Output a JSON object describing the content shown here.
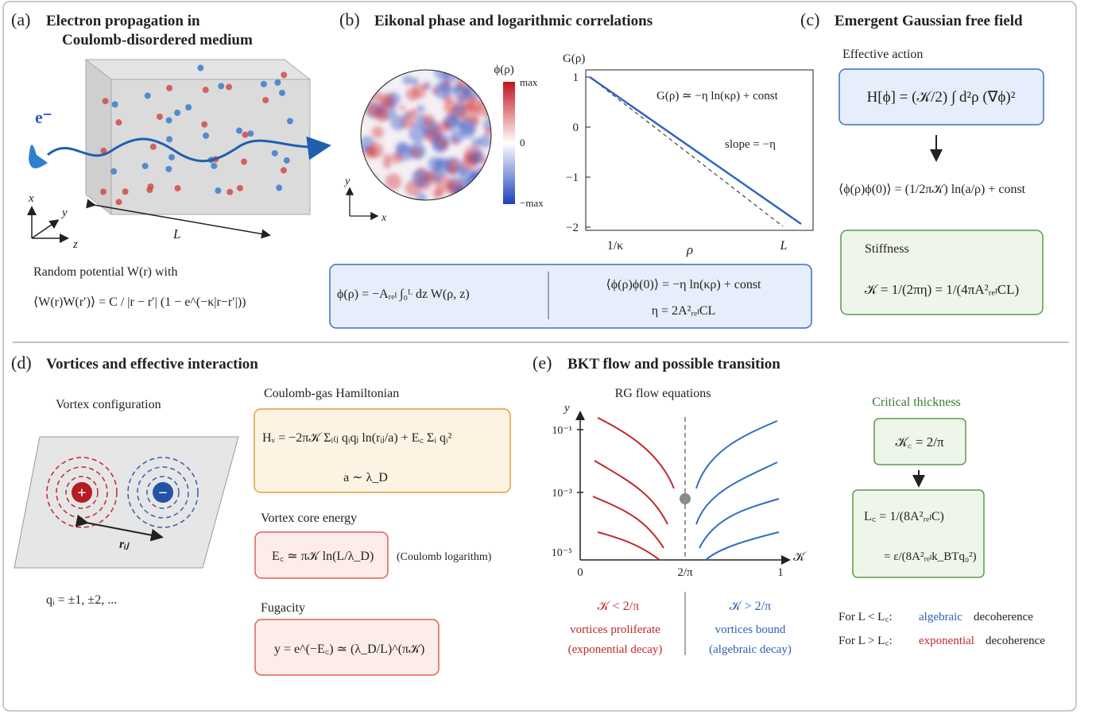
{
  "a": {
    "label": "(a)",
    "title": [
      "Electron propagation in",
      "Coulomb-disordered medium"
    ],
    "electron": "e⁻",
    "axes": [
      "x",
      "y",
      "z"
    ],
    "length": "L",
    "caption": "Random potential W(r) with",
    "equation": "⟨W(r)W(r′)⟩ = C / |r − r′| (1 − e^(−κ|r−r′|))"
  },
  "b": {
    "label": "(b)",
    "title": "Eikonal phase and logarithmic correlations",
    "colorbar_title": "ϕ(ρ)",
    "colorbar_ticks": [
      "max",
      "0",
      "−max"
    ],
    "map_axes": [
      "y",
      "x"
    ],
    "plot_ylabel": "G(ρ)",
    "plot_yticks": [
      "1",
      "0",
      "−1",
      "−2"
    ],
    "plot_xticks": [
      "1/κ",
      "ρ",
      "L"
    ],
    "fit_label": "G(ρ) ≃ −η ln(κρ) + const",
    "slope_label": "slope = −η",
    "box": [
      "ϕ(ρ) = −Aᵣₑₗ ∫₀ᴸ dz W(ρ, z)",
      "⟨ϕ(ρ)ϕ(0)⟩ = −η ln(κρ) + const",
      "η = 2A²ᵣₑₗCL"
    ]
  },
  "c": {
    "label": "(c)",
    "title": "Emergent Gaussian free field",
    "action_title": "Effective action",
    "action": "H[ϕ] = (𝒦/2) ∫ d²ρ (∇ϕ)²",
    "correlator": "⟨ϕ(ρ)ϕ(0)⟩ = (1/2π𝒦) ln(a/ρ) + const",
    "stiffness_title": "Stiffness",
    "stiffness": "𝒦 = 1/(2πη) = 1/(4πA²ᵣₑₗCL)"
  },
  "d": {
    "label": "(d)",
    "title": "Vortices and effective interaction",
    "config_title": "Vortex configuration",
    "charges": [
      "+",
      "−"
    ],
    "distance": "rᵢⱼ",
    "charge_values": "qᵢ = ±1, ±2, ...",
    "hamiltonian_title": "Coulomb-gas Hamiltonian",
    "hamiltonian": [
      "Hᵥ = −2π𝒦 Σᵢ₍ⱼ qᵢqⱼ ln(rᵢⱼ/a) + E꜀ Σᵢ qᵢ²",
      "a ∼ λ_D"
    ],
    "core_title": "Vortex core energy",
    "core": "E꜀ ≃ π𝒦 ln(L/λ_D)",
    "core_note": "(Coulomb logarithm)",
    "fugacity_title": "Fugacity",
    "fugacity": "y = e^(−E꜀) ≃ (λ_D/L)^(π𝒦)"
  },
  "e": {
    "label": "(e)",
    "title": "BKT flow and possible transition",
    "flow_title": "RG flow equations",
    "ylabel": "y",
    "yticks": [
      "10⁻¹",
      "10⁻³",
      "10⁻⁵"
    ],
    "xticks": [
      "0",
      "2/π",
      "1"
    ],
    "xlabel": "𝒦",
    "left": [
      "𝒦 < 2/π",
      "vortices proliferate",
      "(exponential decay)"
    ],
    "right": [
      "𝒦 > 2/π",
      "vortices bound",
      "(algebraic decay)"
    ],
    "critical_title": "Critical thickness",
    "critical_K": "𝒦꜀ = 2/π",
    "critical_L": [
      "L꜀ = 1/(8A²ᵣₑₗC)",
      "= ε/(8A²ᵣₑₗk_BTq₀²)"
    ],
    "cases": [
      [
        "For L < L꜀:",
        "algebraic",
        "decoherence"
      ],
      [
        "For L > L꜀:",
        "exponential",
        "decoherence"
      ]
    ]
  }
}
